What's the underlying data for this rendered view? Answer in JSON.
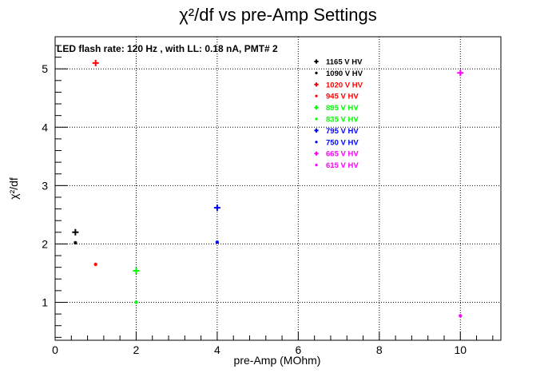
{
  "chart_data": {
    "type": "scatter",
    "title": "χ²/df vs pre-Amp Settings",
    "subtitle": "LED flash rate: 120 Hz , with LL: 0.18 nA, PMT# 2",
    "xlabel": "pre-Amp (MOhm)",
    "ylabel": "χ²/df",
    "xlim": [
      0,
      11
    ],
    "ylim": [
      0.35,
      5.55
    ],
    "xticks": [
      "0",
      "2",
      "4",
      "6",
      "8",
      "10"
    ],
    "yticks": [
      "1",
      "2",
      "3",
      "4",
      "5"
    ],
    "grid": true,
    "legend_position": "top-right",
    "series": [
      {
        "name": "1165 V HV",
        "color": "#000000",
        "marker": "plus",
        "points": [
          [
            0.5,
            2.2
          ]
        ]
      },
      {
        "name": "1090 V HV",
        "color": "#000000",
        "marker": "star",
        "points": [
          [
            0.5,
            2.02
          ]
        ]
      },
      {
        "name": "1020 V HV",
        "color": "#ff0000",
        "marker": "plus",
        "points": [
          [
            1.0,
            5.1
          ]
        ]
      },
      {
        "name": "945 V HV",
        "color": "#ff0000",
        "marker": "star",
        "points": [
          [
            1.0,
            1.65
          ]
        ]
      },
      {
        "name": "895 V HV",
        "color": "#00ff00",
        "marker": "plus",
        "points": [
          [
            2.0,
            1.54
          ]
        ]
      },
      {
        "name": "835 V HV",
        "color": "#00ff00",
        "marker": "star",
        "points": [
          [
            2.0,
            1.0
          ]
        ]
      },
      {
        "name": "795 V HV",
        "color": "#0000ff",
        "marker": "plus",
        "points": [
          [
            4.0,
            2.62
          ]
        ]
      },
      {
        "name": "750 V HV",
        "color": "#0000ff",
        "marker": "star",
        "points": [
          [
            4.0,
            2.03
          ]
        ]
      },
      {
        "name": "665 V HV",
        "color": "#ff00ff",
        "marker": "plus",
        "points": [
          [
            10.0,
            4.93
          ]
        ]
      },
      {
        "name": "615 V HV",
        "color": "#ff00ff",
        "marker": "star",
        "points": [
          [
            10.0,
            0.77
          ]
        ]
      }
    ]
  }
}
